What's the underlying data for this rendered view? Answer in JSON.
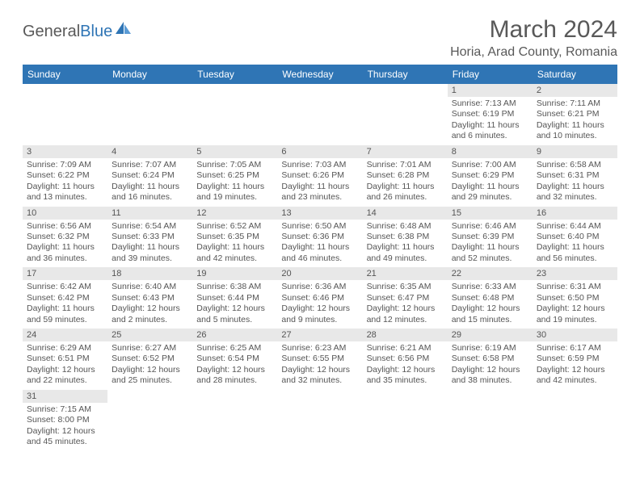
{
  "brand": {
    "part1": "General",
    "part2": "Blue"
  },
  "title": "March 2024",
  "location": "Horia, Arad County, Romania",
  "colors": {
    "header_bg": "#2f75b5",
    "header_text": "#ffffff",
    "daynum_bg": "#e8e8e8",
    "text": "#555555",
    "brand_gray": "#595959",
    "brand_blue": "#2f75b5"
  },
  "dayNames": [
    "Sunday",
    "Monday",
    "Tuesday",
    "Wednesday",
    "Thursday",
    "Friday",
    "Saturday"
  ],
  "weeks": [
    [
      {
        "n": "",
        "sr": "",
        "ss": "",
        "dl": ""
      },
      {
        "n": "",
        "sr": "",
        "ss": "",
        "dl": ""
      },
      {
        "n": "",
        "sr": "",
        "ss": "",
        "dl": ""
      },
      {
        "n": "",
        "sr": "",
        "ss": "",
        "dl": ""
      },
      {
        "n": "",
        "sr": "",
        "ss": "",
        "dl": ""
      },
      {
        "n": "1",
        "sr": "Sunrise: 7:13 AM",
        "ss": "Sunset: 6:19 PM",
        "dl": "Daylight: 11 hours and 6 minutes."
      },
      {
        "n": "2",
        "sr": "Sunrise: 7:11 AM",
        "ss": "Sunset: 6:21 PM",
        "dl": "Daylight: 11 hours and 10 minutes."
      }
    ],
    [
      {
        "n": "3",
        "sr": "Sunrise: 7:09 AM",
        "ss": "Sunset: 6:22 PM",
        "dl": "Daylight: 11 hours and 13 minutes."
      },
      {
        "n": "4",
        "sr": "Sunrise: 7:07 AM",
        "ss": "Sunset: 6:24 PM",
        "dl": "Daylight: 11 hours and 16 minutes."
      },
      {
        "n": "5",
        "sr": "Sunrise: 7:05 AM",
        "ss": "Sunset: 6:25 PM",
        "dl": "Daylight: 11 hours and 19 minutes."
      },
      {
        "n": "6",
        "sr": "Sunrise: 7:03 AM",
        "ss": "Sunset: 6:26 PM",
        "dl": "Daylight: 11 hours and 23 minutes."
      },
      {
        "n": "7",
        "sr": "Sunrise: 7:01 AM",
        "ss": "Sunset: 6:28 PM",
        "dl": "Daylight: 11 hours and 26 minutes."
      },
      {
        "n": "8",
        "sr": "Sunrise: 7:00 AM",
        "ss": "Sunset: 6:29 PM",
        "dl": "Daylight: 11 hours and 29 minutes."
      },
      {
        "n": "9",
        "sr": "Sunrise: 6:58 AM",
        "ss": "Sunset: 6:31 PM",
        "dl": "Daylight: 11 hours and 32 minutes."
      }
    ],
    [
      {
        "n": "10",
        "sr": "Sunrise: 6:56 AM",
        "ss": "Sunset: 6:32 PM",
        "dl": "Daylight: 11 hours and 36 minutes."
      },
      {
        "n": "11",
        "sr": "Sunrise: 6:54 AM",
        "ss": "Sunset: 6:33 PM",
        "dl": "Daylight: 11 hours and 39 minutes."
      },
      {
        "n": "12",
        "sr": "Sunrise: 6:52 AM",
        "ss": "Sunset: 6:35 PM",
        "dl": "Daylight: 11 hours and 42 minutes."
      },
      {
        "n": "13",
        "sr": "Sunrise: 6:50 AM",
        "ss": "Sunset: 6:36 PM",
        "dl": "Daylight: 11 hours and 46 minutes."
      },
      {
        "n": "14",
        "sr": "Sunrise: 6:48 AM",
        "ss": "Sunset: 6:38 PM",
        "dl": "Daylight: 11 hours and 49 minutes."
      },
      {
        "n": "15",
        "sr": "Sunrise: 6:46 AM",
        "ss": "Sunset: 6:39 PM",
        "dl": "Daylight: 11 hours and 52 minutes."
      },
      {
        "n": "16",
        "sr": "Sunrise: 6:44 AM",
        "ss": "Sunset: 6:40 PM",
        "dl": "Daylight: 11 hours and 56 minutes."
      }
    ],
    [
      {
        "n": "17",
        "sr": "Sunrise: 6:42 AM",
        "ss": "Sunset: 6:42 PM",
        "dl": "Daylight: 11 hours and 59 minutes."
      },
      {
        "n": "18",
        "sr": "Sunrise: 6:40 AM",
        "ss": "Sunset: 6:43 PM",
        "dl": "Daylight: 12 hours and 2 minutes."
      },
      {
        "n": "19",
        "sr": "Sunrise: 6:38 AM",
        "ss": "Sunset: 6:44 PM",
        "dl": "Daylight: 12 hours and 5 minutes."
      },
      {
        "n": "20",
        "sr": "Sunrise: 6:36 AM",
        "ss": "Sunset: 6:46 PM",
        "dl": "Daylight: 12 hours and 9 minutes."
      },
      {
        "n": "21",
        "sr": "Sunrise: 6:35 AM",
        "ss": "Sunset: 6:47 PM",
        "dl": "Daylight: 12 hours and 12 minutes."
      },
      {
        "n": "22",
        "sr": "Sunrise: 6:33 AM",
        "ss": "Sunset: 6:48 PM",
        "dl": "Daylight: 12 hours and 15 minutes."
      },
      {
        "n": "23",
        "sr": "Sunrise: 6:31 AM",
        "ss": "Sunset: 6:50 PM",
        "dl": "Daylight: 12 hours and 19 minutes."
      }
    ],
    [
      {
        "n": "24",
        "sr": "Sunrise: 6:29 AM",
        "ss": "Sunset: 6:51 PM",
        "dl": "Daylight: 12 hours and 22 minutes."
      },
      {
        "n": "25",
        "sr": "Sunrise: 6:27 AM",
        "ss": "Sunset: 6:52 PM",
        "dl": "Daylight: 12 hours and 25 minutes."
      },
      {
        "n": "26",
        "sr": "Sunrise: 6:25 AM",
        "ss": "Sunset: 6:54 PM",
        "dl": "Daylight: 12 hours and 28 minutes."
      },
      {
        "n": "27",
        "sr": "Sunrise: 6:23 AM",
        "ss": "Sunset: 6:55 PM",
        "dl": "Daylight: 12 hours and 32 minutes."
      },
      {
        "n": "28",
        "sr": "Sunrise: 6:21 AM",
        "ss": "Sunset: 6:56 PM",
        "dl": "Daylight: 12 hours and 35 minutes."
      },
      {
        "n": "29",
        "sr": "Sunrise: 6:19 AM",
        "ss": "Sunset: 6:58 PM",
        "dl": "Daylight: 12 hours and 38 minutes."
      },
      {
        "n": "30",
        "sr": "Sunrise: 6:17 AM",
        "ss": "Sunset: 6:59 PM",
        "dl": "Daylight: 12 hours and 42 minutes."
      }
    ],
    [
      {
        "n": "31",
        "sr": "Sunrise: 7:15 AM",
        "ss": "Sunset: 8:00 PM",
        "dl": "Daylight: 12 hours and 45 minutes."
      },
      {
        "n": "",
        "sr": "",
        "ss": "",
        "dl": ""
      },
      {
        "n": "",
        "sr": "",
        "ss": "",
        "dl": ""
      },
      {
        "n": "",
        "sr": "",
        "ss": "",
        "dl": ""
      },
      {
        "n": "",
        "sr": "",
        "ss": "",
        "dl": ""
      },
      {
        "n": "",
        "sr": "",
        "ss": "",
        "dl": ""
      },
      {
        "n": "",
        "sr": "",
        "ss": "",
        "dl": ""
      }
    ]
  ]
}
